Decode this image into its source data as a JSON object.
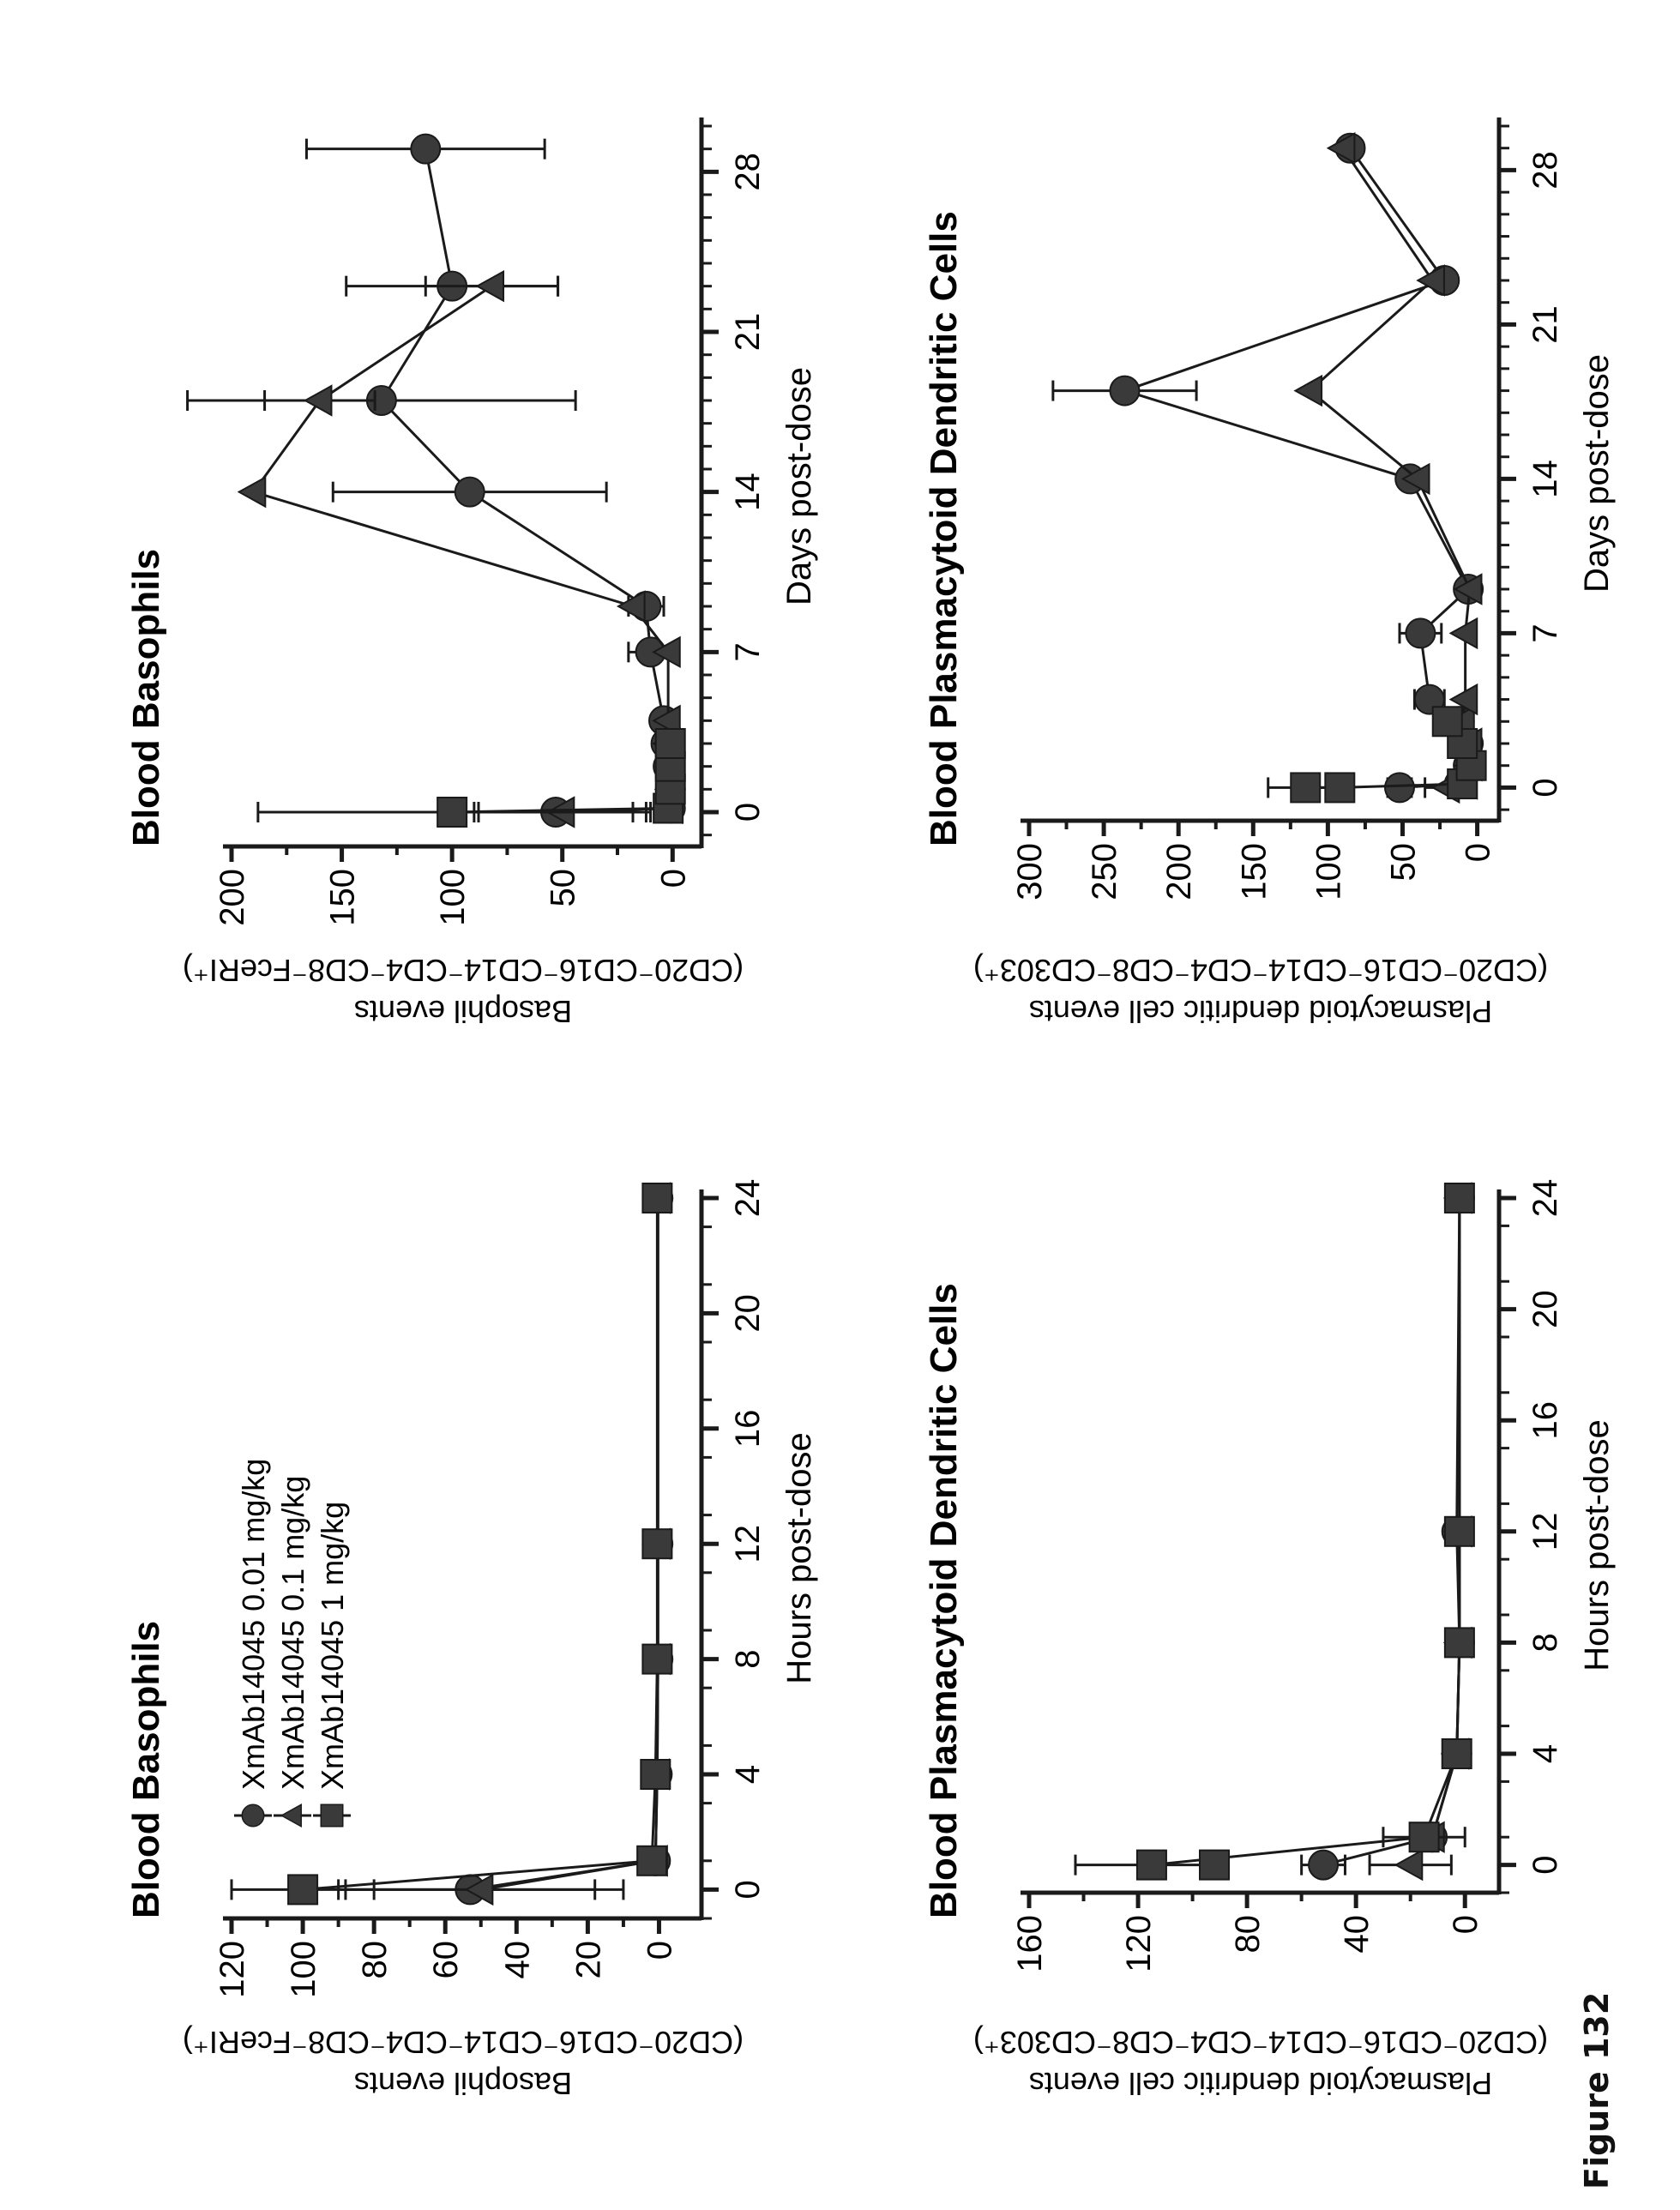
{
  "figure_label": "Figure 132",
  "orientation_note": "page rotated 90 degrees counter-clockwise",
  "legend": {
    "entries": [
      {
        "name": "XmAb14045 0.01 mg/kg",
        "marker": "circle"
      },
      {
        "name": "XmAb14045 0.1 mg/kg",
        "marker": "triangle"
      },
      {
        "name": "XmAb14045 1 mg/kg",
        "marker": "square"
      }
    ]
  },
  "chart_data": [
    {
      "id": "basophils_hours",
      "type": "line",
      "title": "Blood Basophils",
      "xlabel": "Hours post-dose",
      "ylabel_line1": "Basophil events",
      "ylabel_line2": "(CD20⁻CD16⁻CD14⁻CD4⁻CD8⁻FceRI⁺)",
      "xlim": [
        -1,
        24
      ],
      "ylim": [
        -10,
        120
      ],
      "xticks": [
        0,
        4,
        8,
        12,
        16,
        20,
        24
      ],
      "yticks": [
        0,
        20,
        40,
        60,
        80,
        100,
        120
      ],
      "legend_position": "top-left",
      "series": [
        {
          "name": "XmAb14045 0.01 mg/kg",
          "marker": "circle",
          "x": [
            0,
            1,
            4,
            8,
            12,
            24
          ],
          "y": [
            53,
            1,
            0.5,
            0.3,
            0.3,
            0.3
          ],
          "err": [
            35,
            0,
            0,
            0,
            0,
            0
          ]
        },
        {
          "name": "XmAb14045 0.1 mg/kg",
          "marker": "triangle",
          "x": [
            0,
            1,
            4,
            8,
            12,
            24
          ],
          "y": [
            50,
            1,
            0.5,
            0.3,
            0.3,
            0.3
          ],
          "err": [
            40,
            0,
            0,
            0,
            0,
            0
          ]
        },
        {
          "name": "XmAb14045 1 mg/kg",
          "marker": "square",
          "x": [
            0,
            1,
            4,
            8,
            12,
            24
          ],
          "y": [
            100,
            2,
            1,
            0.5,
            0.5,
            0.5
          ],
          "err": [
            20,
            0,
            0,
            0,
            0,
            0
          ]
        }
      ]
    },
    {
      "id": "basophils_days",
      "type": "line",
      "title": "Blood Basophils",
      "xlabel": "Days post-dose",
      "ylabel_line1": "Basophil events",
      "ylabel_line2": "(CD20⁻CD16⁻CD14⁻CD4⁻CD8⁻FceRI⁺)",
      "xlim": [
        -1.5,
        30
      ],
      "ylim": [
        -10,
        200
      ],
      "xticks": [
        0,
        7,
        14,
        21,
        28
      ],
      "yticks": [
        0,
        50,
        100,
        150,
        200
      ],
      "legend_position": "none",
      "series": [
        {
          "name": "XmAb14045 0.01 mg/kg",
          "marker": "circle",
          "x": [
            0,
            0.17,
            1,
            2,
            3,
            4,
            7,
            9,
            14,
            18,
            23,
            29
          ],
          "y": [
            53,
            1,
            1,
            2,
            3,
            4,
            10,
            12,
            92,
            132,
            100,
            112
          ],
          "err": [
            35,
            0,
            0,
            0,
            0,
            0,
            10,
            8,
            62,
            88,
            48,
            54
          ]
        },
        {
          "name": "XmAb14045 0.1 mg/kg",
          "marker": "triangle",
          "x": [
            0,
            0.17,
            1,
            2,
            3,
            4,
            7,
            9,
            14,
            18,
            23
          ],
          "y": [
            50,
            1,
            1,
            1,
            2,
            2,
            2,
            18,
            190,
            160,
            82
          ],
          "err": [
            40,
            0,
            0,
            0,
            0,
            0,
            0,
            0,
            0,
            25,
            30
          ]
        },
        {
          "name": "XmAb14045 1 mg/kg",
          "marker": "square",
          "x": [
            0,
            0.17,
            1,
            2,
            3
          ],
          "y": [
            100,
            2,
            1,
            1,
            1
          ],
          "err": [
            88,
            0,
            0,
            0,
            0
          ]
        }
      ]
    },
    {
      "id": "pdc_hours",
      "type": "line",
      "title": "Blood Plasmacytoid Dendritic Cells",
      "xlabel": "Hours post-dose",
      "ylabel_line1": "Plasmacytoid dendritic cell events",
      "ylabel_line2": "(CD20⁻CD16⁻CD14⁻CD4⁻CD8⁻CD303⁺)",
      "xlim": [
        -1,
        24
      ],
      "ylim": [
        -10,
        160
      ],
      "xticks": [
        0,
        4,
        8,
        12,
        16,
        20,
        24
      ],
      "yticks": [
        0,
        40,
        80,
        120,
        160
      ],
      "legend_position": "none",
      "series": [
        {
          "name": "XmAb14045 0.01 mg/kg",
          "marker": "circle",
          "x": [
            0,
            1,
            4,
            8,
            12,
            24
          ],
          "y": [
            52,
            12,
            3,
            2,
            3,
            2
          ],
          "err": [
            8,
            2,
            0,
            0,
            0,
            0
          ]
        },
        {
          "name": "XmAb14045 0.1 mg/kg",
          "marker": "triangle",
          "x": [
            0,
            1,
            4,
            8,
            12,
            24
          ],
          "y": [
            20,
            12,
            3,
            2,
            2,
            2
          ],
          "err": [
            15,
            2,
            0,
            0,
            0,
            0
          ]
        },
        {
          "name": "XmAb14045 1 mg/kg",
          "marker": "square",
          "x": [
            0,
            1,
            4,
            8,
            12,
            24
          ],
          "y": [
            115,
            15,
            3,
            2,
            2,
            2
          ],
          "err": [
            28,
            15,
            0,
            0,
            0,
            0
          ]
        },
        {
          "name": "XmAb14045 1 mg/kg (replicate)",
          "marker": "square",
          "x": [
            0
          ],
          "y": [
            92
          ],
          "err": [
            0
          ]
        }
      ]
    },
    {
      "id": "pdc_days",
      "type": "line",
      "title": "Blood Plasmacytoid Dendritic Cells",
      "xlabel": "Days post-dose",
      "ylabel_line1": "Plasmacytoid dendritic cell events",
      "ylabel_line2": "(CD20⁻CD16⁻CD14⁻CD4⁻CD8⁻CD303⁺)",
      "xlim": [
        -1.5,
        30
      ],
      "ylim": [
        -10,
        300
      ],
      "xticks": [
        0,
        7,
        14,
        21,
        28
      ],
      "yticks": [
        0,
        50,
        100,
        150,
        200,
        250,
        300
      ],
      "legend_position": "none",
      "series": [
        {
          "name": "XmAb14045 0.01 mg/kg",
          "marker": "circle",
          "x": [
            0,
            0.17,
            1,
            2,
            3,
            4,
            7,
            9,
            14,
            18,
            23,
            29
          ],
          "y": [
            52,
            12,
            6,
            6,
            12,
            32,
            38,
            6,
            45,
            236,
            22,
            85
          ],
          "err": [
            8,
            0,
            0,
            4,
            0,
            10,
            14,
            0,
            6,
            48,
            0,
            5
          ]
        },
        {
          "name": "XmAb14045 0.1 mg/kg",
          "marker": "triangle",
          "x": [
            0,
            0.17,
            1,
            2,
            3,
            4,
            7,
            9,
            14,
            18,
            23,
            29
          ],
          "y": [
            20,
            8,
            5,
            5,
            10,
            8,
            8,
            5,
            40,
            112,
            30,
            90
          ],
          "err": [
            15,
            0,
            0,
            0,
            0,
            0,
            0,
            0,
            0,
            0,
            0,
            0
          ]
        },
        {
          "name": "XmAb14045 1 mg/kg",
          "marker": "square",
          "x": [
            0,
            0,
            0.17,
            1,
            2,
            3
          ],
          "y": [
            115,
            92,
            10,
            4,
            10,
            20
          ],
          "err": [
            25,
            0,
            0,
            0,
            0,
            0
          ]
        }
      ]
    }
  ]
}
